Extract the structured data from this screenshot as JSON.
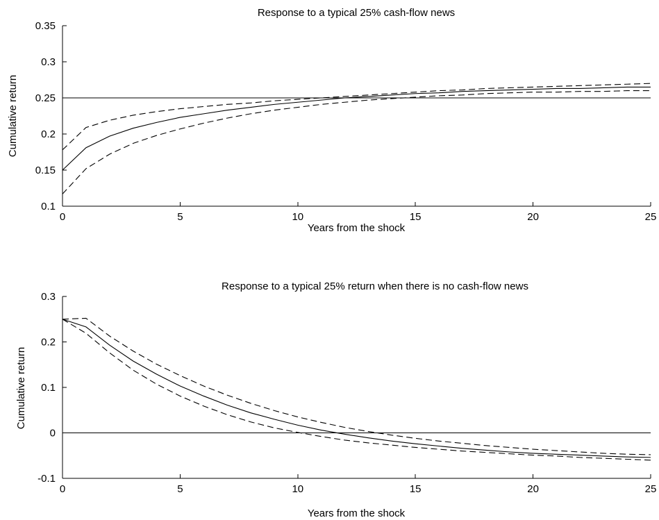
{
  "chart_data": [
    {
      "type": "line",
      "title": "Response to a typical 25% cash-flow news",
      "xlabel": "Years from the shock",
      "ylabel": "Cumulative return",
      "xlim": [
        0,
        25
      ],
      "ylim": [
        0.1,
        0.35
      ],
      "xticks": [
        0,
        5,
        10,
        15,
        20,
        25
      ],
      "xtick_labels": [
        "0",
        "5",
        "10",
        "15",
        "20",
        "25"
      ],
      "yticks": [
        0.1,
        0.15,
        0.2,
        0.25,
        0.3,
        0.35
      ],
      "ytick_labels": [
        "0.1",
        "0.15",
        "0.2",
        "0.25",
        "0.3",
        "0.35"
      ],
      "grid": false,
      "reference_line": 0.25,
      "x": [
        0,
        1,
        2,
        3,
        4,
        5,
        6,
        7,
        8,
        9,
        10,
        11,
        12,
        13,
        14,
        15,
        16,
        17,
        18,
        19,
        20,
        21,
        22,
        23,
        24,
        25
      ],
      "series": [
        {
          "style": "solid",
          "values": [
            0.15,
            0.181,
            0.197,
            0.208,
            0.216,
            0.223,
            0.228,
            0.233,
            0.237,
            0.241,
            0.244,
            0.247,
            0.25,
            0.252,
            0.254,
            0.256,
            0.257,
            0.259,
            0.26,
            0.261,
            0.262,
            0.263,
            0.263,
            0.264,
            0.265,
            0.265
          ]
        },
        {
          "style": "dashed",
          "values": [
            0.178,
            0.209,
            0.219,
            0.226,
            0.231,
            0.235,
            0.238,
            0.241,
            0.243,
            0.246,
            0.248,
            0.25,
            0.252,
            0.254,
            0.256,
            0.258,
            0.26,
            0.261,
            0.263,
            0.264,
            0.265,
            0.266,
            0.267,
            0.268,
            0.269,
            0.27
          ]
        },
        {
          "style": "dashed",
          "values": [
            0.117,
            0.152,
            0.172,
            0.187,
            0.198,
            0.207,
            0.215,
            0.222,
            0.228,
            0.233,
            0.237,
            0.241,
            0.244,
            0.247,
            0.249,
            0.251,
            0.253,
            0.254,
            0.256,
            0.257,
            0.258,
            0.258,
            0.259,
            0.259,
            0.26,
            0.26
          ]
        }
      ]
    },
    {
      "type": "line",
      "title": "Response to a typical 25% return when there is no cash-flow news",
      "xlabel": "Years from the shock",
      "ylabel": "Cumulative return",
      "xlim": [
        0,
        25
      ],
      "ylim": [
        -0.1,
        0.3
      ],
      "xticks": [
        0,
        5,
        10,
        15,
        20,
        25
      ],
      "xtick_labels": [
        "0",
        "5",
        "10",
        "15",
        "20",
        "25"
      ],
      "yticks": [
        -0.1,
        0,
        0.1,
        0.2,
        0.3
      ],
      "ytick_labels": [
        "-0.1",
        "0",
        "0.1",
        "0.2",
        "0.3"
      ],
      "grid": false,
      "reference_line": 0,
      "x": [
        0,
        1,
        2,
        3,
        4,
        5,
        6,
        7,
        8,
        9,
        10,
        11,
        12,
        13,
        14,
        15,
        16,
        17,
        18,
        19,
        20,
        21,
        22,
        23,
        24,
        25
      ],
      "series": [
        {
          "style": "solid",
          "values": [
            0.25,
            0.233,
            0.193,
            0.158,
            0.129,
            0.103,
            0.081,
            0.061,
            0.044,
            0.03,
            0.017,
            0.006,
            -0.003,
            -0.011,
            -0.018,
            -0.024,
            -0.029,
            -0.034,
            -0.038,
            -0.042,
            -0.045,
            -0.047,
            -0.049,
            -0.051,
            -0.053,
            -0.054
          ]
        },
        {
          "style": "dashed",
          "values": [
            0.25,
            0.252,
            0.213,
            0.18,
            0.151,
            0.126,
            0.103,
            0.083,
            0.065,
            0.049,
            0.035,
            0.023,
            0.012,
            0.003,
            -0.005,
            -0.012,
            -0.018,
            -0.023,
            -0.028,
            -0.032,
            -0.036,
            -0.039,
            -0.042,
            -0.045,
            -0.047,
            -0.048
          ]
        },
        {
          "style": "dashed",
          "values": [
            0.25,
            0.219,
            0.176,
            0.138,
            0.107,
            0.081,
            0.059,
            0.04,
            0.024,
            0.011,
            0.001,
            -0.008,
            -0.016,
            -0.022,
            -0.027,
            -0.032,
            -0.036,
            -0.04,
            -0.043,
            -0.046,
            -0.049,
            -0.051,
            -0.054,
            -0.056,
            -0.058,
            -0.06
          ]
        }
      ]
    }
  ]
}
